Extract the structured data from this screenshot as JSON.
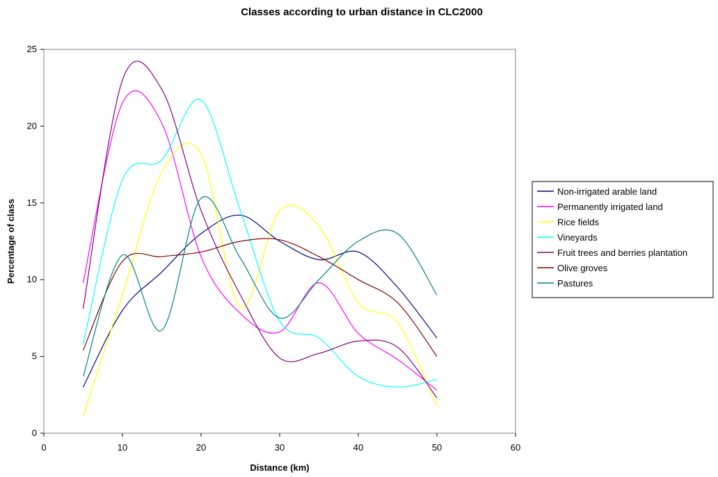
{
  "chart_data": {
    "type": "line",
    "title": "Classes according to urban distance in CLC2000",
    "xlabel": "Distance (km)",
    "ylabel": "Percentage of class",
    "xlim": [
      0,
      60
    ],
    "ylim": [
      0,
      25
    ],
    "xticks": [
      0,
      10,
      20,
      30,
      40,
      50,
      60
    ],
    "yticks": [
      0,
      5,
      10,
      15,
      20,
      25
    ],
    "grid": false,
    "smooth": true,
    "legend_position": "right",
    "x": [
      5,
      10,
      15,
      20,
      25,
      30,
      35,
      40,
      45,
      50
    ],
    "series": [
      {
        "name": "Non-irrigated arable land",
        "color": "#000080",
        "values": [
          3.0,
          8.0,
          10.5,
          13.0,
          14.2,
          12.5,
          11.3,
          11.8,
          9.5,
          6.2
        ]
      },
      {
        "name": "Permanently irrigated land",
        "color": "#FF00FF",
        "values": [
          9.8,
          21.5,
          20.2,
          11.5,
          7.8,
          6.6,
          9.8,
          6.5,
          4.8,
          2.8
        ]
      },
      {
        "name": "Rice fields",
        "color": "#FFFF00",
        "values": [
          1.1,
          9.0,
          17.0,
          18.2,
          8.2,
          14.5,
          13.5,
          8.5,
          7.2,
          1.8
        ]
      },
      {
        "name": "Vineyards",
        "color": "#00FFFF",
        "values": [
          5.8,
          16.5,
          17.8,
          21.7,
          14.5,
          7.3,
          6.2,
          3.7,
          3.0,
          3.5
        ]
      },
      {
        "name": "Fruit trees and berries plantation",
        "color": "#800080",
        "values": [
          8.1,
          23.0,
          22.4,
          14.5,
          9.0,
          4.9,
          5.2,
          6.0,
          5.6,
          2.3
        ]
      },
      {
        "name": "Olive groves",
        "color": "#800000",
        "values": [
          5.4,
          11.2,
          11.5,
          11.8,
          12.5,
          12.6,
          11.5,
          10.0,
          8.5,
          5.0
        ]
      },
      {
        "name": "Pastures",
        "color": "#008080",
        "values": [
          3.7,
          11.6,
          6.7,
          15.3,
          11.4,
          7.5,
          10.0,
          12.5,
          13.0,
          9.0
        ]
      }
    ]
  }
}
